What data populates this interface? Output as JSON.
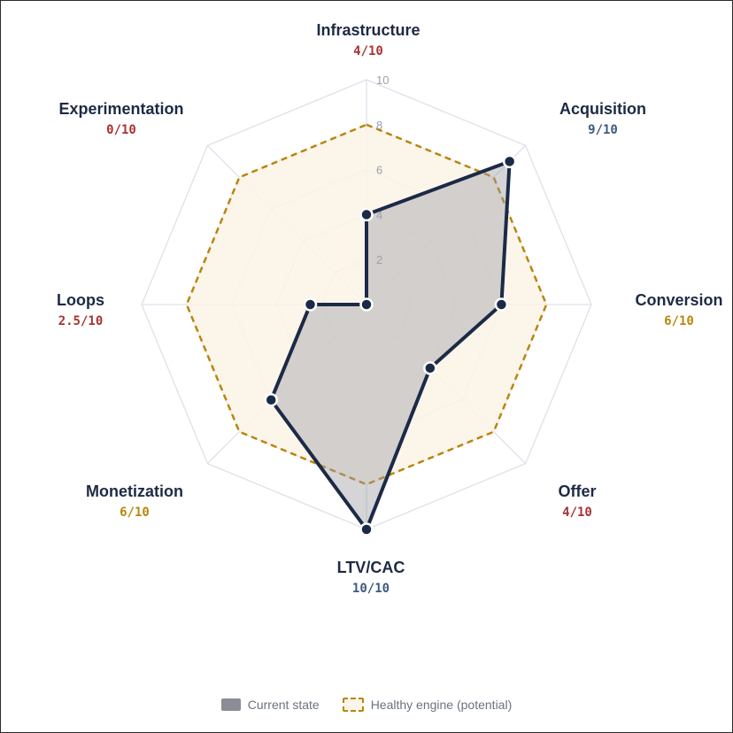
{
  "chart_data": {
    "type": "radar",
    "categories": [
      "Infrastructure",
      "Acquisition",
      "Conversion",
      "Offer",
      "LTV/CAC",
      "Monetization",
      "Loops",
      "Experimentation"
    ],
    "score_labels": [
      "4/10",
      "9/10",
      "6/10",
      "4/10",
      "10/10",
      "6/10",
      "2.5/10",
      "0/10"
    ],
    "score_colors": [
      "#a83232",
      "#3d5a80",
      "#b8860b",
      "#a83232",
      "#3d5a80",
      "#b8860b",
      "#a83232",
      "#a83232"
    ],
    "series": [
      {
        "name": "Current state",
        "values": [
          4,
          9,
          6,
          4,
          10,
          6,
          2.5,
          0
        ]
      },
      {
        "name": "Healthy engine (potential)",
        "values": [
          8,
          8,
          8,
          8,
          8,
          8,
          8,
          8
        ]
      }
    ],
    "rlim": [
      0,
      10
    ],
    "ticks": [
      "2",
      "4",
      "6",
      "8",
      "10"
    ],
    "grid": true,
    "legend": "bottom"
  },
  "colors": {
    "current_stroke": "#1b2a47",
    "current_fill": "#9a9ca3",
    "healthy_stroke": "#b8860b",
    "healthy_fill": "#fbf3e6",
    "grid": "#dde1ea"
  },
  "legend": {
    "current_label": "Current state",
    "healthy_label": "Healthy engine (potential)"
  }
}
